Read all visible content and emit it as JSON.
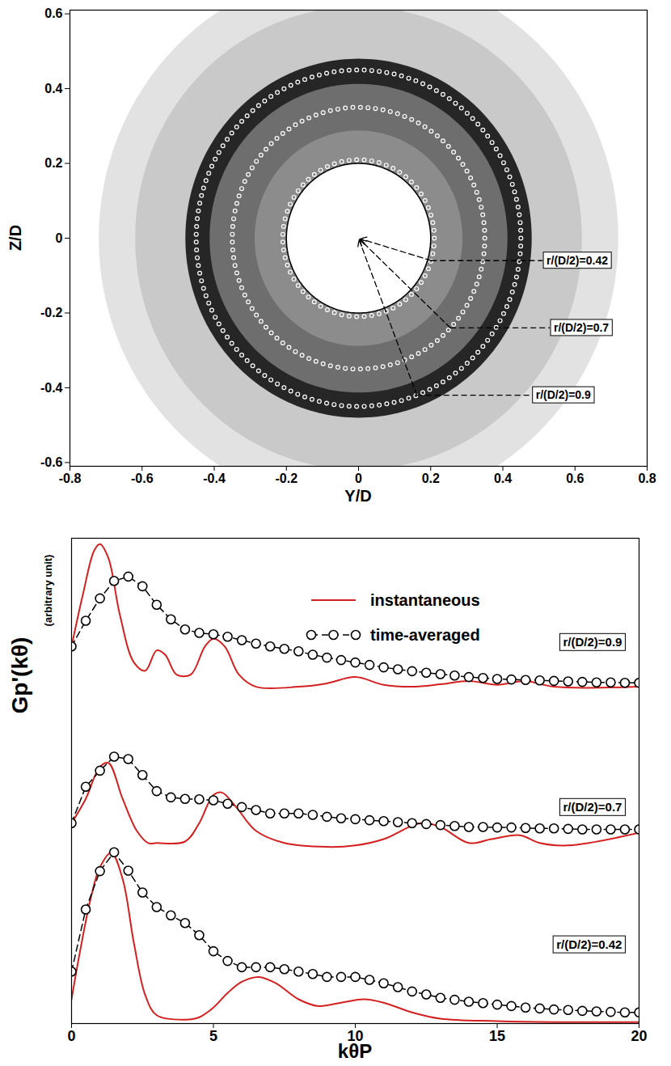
{
  "chart_data": [
    {
      "type": "contour",
      "xlabel": "Y/D",
      "ylabel": "Z/D",
      "xlim": [
        -0.8,
        0.8
      ],
      "ylim": [
        -0.61,
        0.61
      ],
      "xticks": [
        -0.8,
        -0.6,
        -0.4,
        -0.2,
        0,
        0.2,
        0.4,
        0.6,
        0.8
      ],
      "yticks": [
        -0.6,
        -0.4,
        -0.2,
        0,
        0.2,
        0.4,
        0.6
      ],
      "field": {
        "outer_radius": 0.72,
        "rotor_radius": 0.48,
        "hub_radius": 0.2
      },
      "circles": [
        {
          "label": "r/(D/2)=0.42",
          "radius": 0.21,
          "label_x": 0.51,
          "label_y": -0.06
        },
        {
          "label": "r/(D/2)=0.7",
          "radius": 0.35,
          "label_x": 0.53,
          "label_y": -0.24
        },
        {
          "label": "r/(D/2)=0.9",
          "radius": 0.45,
          "label_x": 0.48,
          "label_y": -0.42
        }
      ]
    },
    {
      "type": "line",
      "xlabel": "kθP",
      "ylabel": "Gp'(kθ)",
      "ylabel_unit": "(arbitrary unit)",
      "xlim": [
        0,
        20
      ],
      "ylim": [
        0,
        100
      ],
      "xticks": [
        0,
        5,
        10,
        15,
        20
      ],
      "yticks": [],
      "tick_labels": "x",
      "legend": "top",
      "series": [
        {
          "name": "instantaneous",
          "color": "#d42020",
          "line_style": "solid",
          "marker": "none",
          "x": [
            0,
            0.4,
            0.8,
            1,
            1.3,
            1.7,
            2.2,
            2.6,
            3,
            3.3,
            3.7,
            4.2,
            4.7,
            5,
            5.4,
            5.9,
            6.5,
            8,
            9,
            10,
            11,
            12,
            13,
            14,
            15,
            16,
            17,
            20
          ],
          "values": [
            77.7,
            88.4,
            97.5,
            98.8,
            95.9,
            84.3,
            74.4,
            72.7,
            76.9,
            76.0,
            71.9,
            71.9,
            77.7,
            79.3,
            77.7,
            71.9,
            69.4,
            69.4,
            70.1,
            71.4,
            69.8,
            69.4,
            69.9,
            70.6,
            69.8,
            70.6,
            69.4,
            69.4
          ]
        },
        {
          "name": "time-averaged",
          "color": "#000000",
          "line_style": "dashed",
          "marker": "circle",
          "x": [
            0,
            0.5,
            1,
            1.5,
            2,
            2.5,
            3,
            3.5,
            4,
            4.5,
            5,
            5.5,
            6,
            6.5,
            7,
            7.5,
            8,
            8.5,
            9,
            9.5,
            10,
            10.5,
            11,
            11.5,
            12,
            12.5,
            13,
            13.5,
            14,
            14.5,
            15,
            15.5,
            16,
            16.5,
            17,
            17.5,
            18,
            18.5,
            19,
            19.5,
            20
          ],
          "values": [
            77.7,
            83,
            87.6,
            91.2,
            92.1,
            90.1,
            86.3,
            83.3,
            81.2,
            80.5,
            80.2,
            79.7,
            79.0,
            78.3,
            77.7,
            77.2,
            76.7,
            76.0,
            75.4,
            74.9,
            74.4,
            73.9,
            73.4,
            73.0,
            72.6,
            72.3,
            72.0,
            71.7,
            71.4,
            71.2,
            71.0,
            70.9,
            70.8,
            70.7,
            70.6,
            70.5,
            70.4,
            70.3,
            70.3,
            70.2,
            70.2
          ]
        },
        {
          "name": "instantaneous",
          "color": "#d42020",
          "line_style": "solid",
          "marker": "none",
          "x": [
            0,
            0.5,
            1,
            1.3,
            1.8,
            2.3,
            2.7,
            3,
            4,
            4.5,
            5,
            5.3,
            5.8,
            6.5,
            7.5,
            9,
            10,
            11,
            12.3,
            13,
            14,
            14.8,
            15.8,
            16.5,
            17.5,
            20
          ],
          "values": [
            41.3,
            46.3,
            52.9,
            53.7,
            46.3,
            39.7,
            37.2,
            37.2,
            37.5,
            41.3,
            47.1,
            47.6,
            44.6,
            39.7,
            37.2,
            36.4,
            36.7,
            38.0,
            41.3,
            40.5,
            37.2,
            38.0,
            38.8,
            37.2,
            36.7,
            39.3
          ]
        },
        {
          "name": "time-averaged",
          "color": "#000000",
          "line_style": "dashed",
          "marker": "circle",
          "x": [
            0,
            0.5,
            1,
            1.5,
            2,
            2.5,
            3,
            3.5,
            4,
            4.5,
            5,
            5.5,
            6,
            6.5,
            7,
            7.5,
            8,
            8.5,
            9,
            9.5,
            10,
            10.5,
            11,
            11.5,
            12,
            12.5,
            13,
            13.5,
            14,
            14.5,
            15,
            15.5,
            16,
            16.5,
            17,
            17.5,
            18,
            18.5,
            19,
            19.5,
            20
          ],
          "values": [
            41.3,
            48.8,
            52.1,
            55.0,
            54.5,
            51.2,
            47.9,
            46.6,
            46.3,
            46.2,
            46.0,
            45.3,
            44.6,
            44.0,
            43.3,
            43.3,
            43.3,
            43.0,
            42.6,
            42.3,
            42.1,
            41.9,
            41.7,
            41.5,
            41.3,
            41.1,
            40.9,
            40.7,
            40.5,
            40.5,
            40.4,
            40.4,
            40.3,
            40.2,
            40.2,
            40.1,
            40.0,
            40.0,
            40.0,
            40.0,
            40.0
          ]
        },
        {
          "name": "instantaneous",
          "color": "#d42020",
          "line_style": "solid",
          "marker": "none",
          "x": [
            0,
            0.3,
            0.7,
            1,
            1.4,
            1.8,
            2.2,
            2.6,
            3,
            4,
            4.5,
            5,
            5.5,
            6,
            6.6,
            7.2,
            8,
            8.7,
            9.5,
            10.3,
            11,
            12,
            13,
            15,
            17,
            20
          ],
          "values": [
            5.0,
            14.9,
            26.4,
            32.2,
            35.2,
            29.8,
            16.5,
            5.8,
            1.7,
            0.8,
            1.3,
            3.3,
            6.3,
            8.6,
            9.6,
            8.3,
            5.0,
            3.6,
            4.3,
            5.0,
            4.3,
            2.3,
            1.0,
            0.5,
            0.3,
            0.3
          ]
        },
        {
          "name": "time-averaged",
          "color": "#000000",
          "line_style": "dashed",
          "marker": "circle",
          "x": [
            0,
            0.5,
            1,
            1.5,
            2,
            2.5,
            3,
            3.5,
            4,
            4.5,
            5,
            5.5,
            6,
            6.5,
            7,
            7.5,
            8,
            8.5,
            9,
            9.5,
            10,
            10.5,
            11,
            11.5,
            12,
            12.5,
            13,
            13.5,
            14,
            14.5,
            15,
            15.5,
            16,
            16.5,
            17,
            17.5,
            18,
            18.5,
            19,
            19.5,
            20
          ],
          "values": [
            10.7,
            23.5,
            31.4,
            35.3,
            31.5,
            27,
            24.0,
            22.3,
            20.7,
            18.2,
            14.9,
            12.9,
            11.6,
            11.6,
            11.6,
            11.2,
            10.7,
            10.2,
            9.6,
            9.6,
            9.6,
            9.0,
            8.3,
            7.5,
            6.6,
            6.0,
            5.3,
            4.9,
            4.5,
            4.2,
            3.9,
            3.6,
            3.3,
            3.1,
            2.9,
            2.8,
            2.6,
            2.5,
            2.4,
            2.3,
            2.3
          ]
        }
      ],
      "annotations": [
        {
          "text": "r/(D/2)=0.9",
          "x": 19.4,
          "y": 78.5
        },
        {
          "text": "r/(D/2)=0.7",
          "x": 19.4,
          "y": 44.5
        },
        {
          "text": "r/(D/2)=0.42",
          "x": 19.4,
          "y": 16.2
        }
      ]
    }
  ]
}
